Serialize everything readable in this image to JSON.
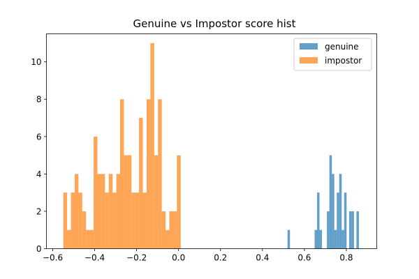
{
  "chart_data": {
    "type": "bar",
    "title": "Genuine vs Impostor score hist",
    "xlabel": "",
    "ylabel": "",
    "xlim": [
      -0.63,
      0.945
    ],
    "ylim": [
      0,
      11.5
    ],
    "xticks": [
      -0.6,
      -0.4,
      -0.2,
      0.0,
      0.2,
      0.4,
      0.6,
      0.8
    ],
    "xtick_labels": [
      "−0.6",
      "−0.4",
      "−0.2",
      "0.0",
      "0.2",
      "0.4",
      "0.6",
      "0.8"
    ],
    "yticks": [
      0,
      2,
      4,
      6,
      8,
      10
    ],
    "ytick_labels": [
      "0",
      "2",
      "4",
      "6",
      "8",
      "10"
    ],
    "grid": false,
    "legend": "top-right",
    "series": [
      {
        "name": "genuine",
        "color": "#1f77b4",
        "bins_start": 0.5195,
        "bin_width": 0.01174,
        "counts": [
          1,
          0,
          0,
          0,
          0,
          0,
          0,
          0,
          0,
          0,
          0,
          1,
          3,
          1,
          0,
          0,
          2,
          5,
          4,
          1,
          3,
          4,
          1,
          3,
          0,
          2,
          2,
          0,
          2
        ]
      },
      {
        "name": "impostor",
        "color": "#ff7f0e",
        "bins_start": -0.5495,
        "bin_width": 0.018054,
        "counts": [
          3,
          1,
          3,
          4,
          3,
          2,
          1,
          1,
          6,
          4,
          4,
          3,
          4,
          3,
          4,
          8,
          5,
          5,
          3,
          3,
          7,
          3,
          8,
          11,
          5,
          8,
          2,
          1,
          2,
          2,
          5
        ]
      }
    ]
  }
}
